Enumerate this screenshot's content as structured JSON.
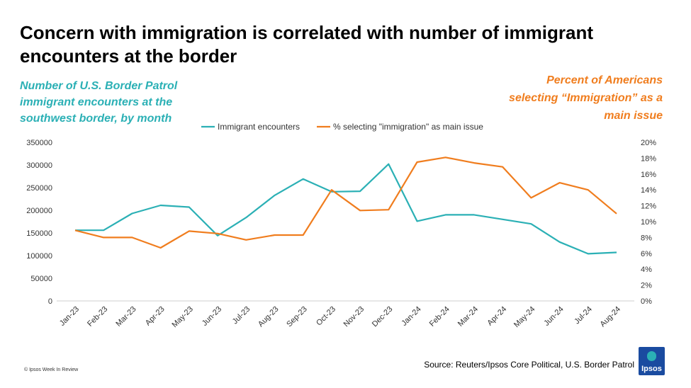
{
  "title": "Concern with immigration is correlated with number of immigrant encounters at the border",
  "left_note": "Number of U.S. Border Patrol immigrant encounters at the southwest border, by month",
  "right_note": "Percent of Americans selecting “Immigration” as a main issue",
  "source": "Source: Reuters/Ipsos Core Political, U.S. Border Patrol",
  "copyright": "© Ipsos Week In Review",
  "logo_text": "Ipsos",
  "colors": {
    "encounters": "#2bb0b5",
    "percent": "#f07d1e",
    "title_left": "#2bb0b5",
    "title_right": "#f07d1e",
    "logo": "#1a4ba0"
  },
  "chart_data": {
    "type": "line",
    "categories": [
      "Jan-23",
      "Feb-23",
      "Mar-23",
      "Apr-23",
      "May-23",
      "Jun-23",
      "Jul-23",
      "Aug-23",
      "Sep-23",
      "Oct-23",
      "Nov-23",
      "Dec-23",
      "Jan-24",
      "Feb-24",
      "Mar-24",
      "Apr-24",
      "May-24",
      "Jun-24",
      "Jul-24",
      "Aug-24"
    ],
    "series": [
      {
        "name": "Immigrant encounters",
        "axis": "left",
        "values": [
          156000,
          156000,
          193000,
          211000,
          207000,
          144000,
          184000,
          233000,
          269000,
          241000,
          242000,
          302000,
          176000,
          190000,
          190000,
          180000,
          170000,
          130000,
          104000,
          107000
        ]
      },
      {
        "name": "% selecting \"immigration\" as main issue",
        "axis": "right",
        "values": [
          8.9,
          8.0,
          8.0,
          6.7,
          8.8,
          8.5,
          7.7,
          8.3,
          8.3,
          14.0,
          11.4,
          11.5,
          17.5,
          18.1,
          17.4,
          16.9,
          13.0,
          14.9,
          14.0,
          11.0
        ]
      }
    ],
    "y_left": {
      "ticks": [
        "0",
        "50000",
        "100000",
        "150000",
        "200000",
        "250000",
        "300000",
        "350000"
      ],
      "range": [
        0,
        350000
      ]
    },
    "y_right": {
      "ticks": [
        "0%",
        "2%",
        "4%",
        "6%",
        "8%",
        "10%",
        "12%",
        "14%",
        "16%",
        "18%",
        "20%"
      ],
      "range": [
        0,
        20
      ]
    },
    "grid": false,
    "legend": "top"
  }
}
